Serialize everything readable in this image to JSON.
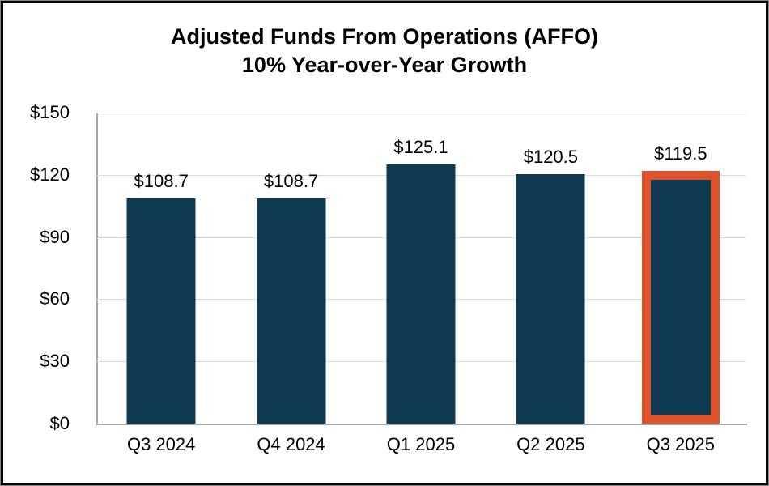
{
  "chart_data": {
    "type": "bar",
    "title_line1": "Adjusted Funds From Operations (AFFO)",
    "title_line2": "10% Year-over-Year Growth",
    "categories": [
      "Q3 2024",
      "Q4 2024",
      "Q1 2025",
      "Q2 2025",
      "Q3 2025"
    ],
    "values": [
      108.7,
      108.7,
      125.1,
      120.5,
      119.5
    ],
    "value_labels": [
      "$108.7",
      "$108.7",
      "$125.1",
      "$120.5",
      "$119.5"
    ],
    "highlighted_index": 4,
    "y_ticks": [
      "$150",
      "$120",
      "$90",
      "$60",
      "$30",
      "$0"
    ],
    "y_tick_values": [
      150,
      120,
      90,
      60,
      30,
      0
    ],
    "ylim": [
      0,
      150
    ],
    "xlabel": "",
    "ylabel": "",
    "grid": true,
    "legend": null,
    "colors": {
      "bar": "#0e3a52",
      "highlight_border": "#e1532c",
      "gridline": "#d9d9d9",
      "axis_line": "#a6a6a6",
      "text": "#000000",
      "background": "#ffffff",
      "frame_border": "#000000"
    }
  }
}
